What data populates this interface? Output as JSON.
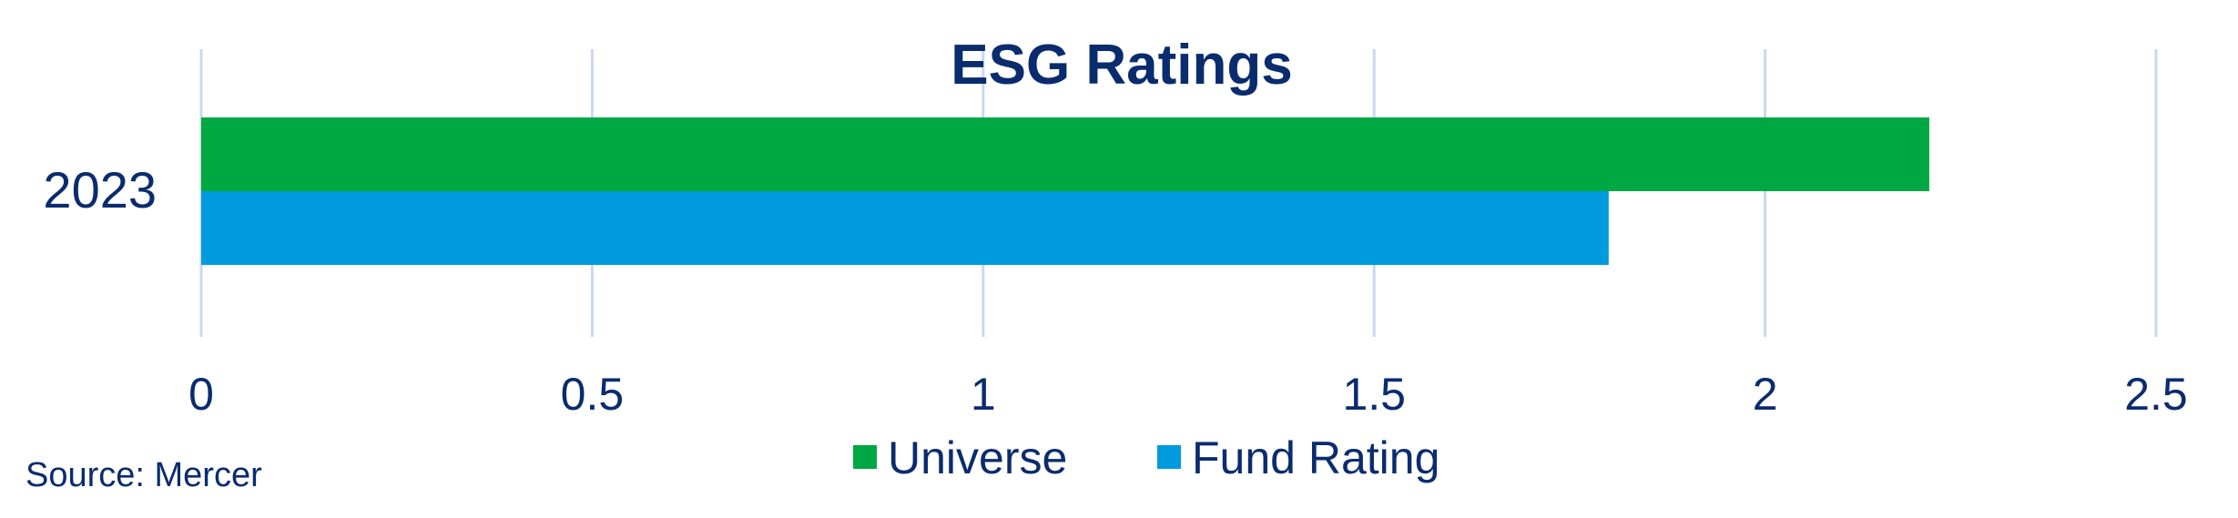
{
  "chart_data": {
    "type": "bar",
    "orientation": "horizontal",
    "title": "ESG Ratings",
    "categories": [
      "2023"
    ],
    "series": [
      {
        "name": "Universe",
        "values": [
          2.21
        ],
        "color": "#00A843"
      },
      {
        "name": "Fund Rating",
        "values": [
          1.8
        ],
        "color": "#009BDE"
      }
    ],
    "xlim": [
      0,
      2.5
    ],
    "x_ticks": [
      "0",
      "0.5",
      "1",
      "1.5",
      "2",
      "2.5"
    ],
    "grid": true,
    "legend_position": "bottom"
  },
  "source_note": "Source: Mercer",
  "colors": {
    "text": "#0A2C6E",
    "grid": "#C8D8F0"
  }
}
